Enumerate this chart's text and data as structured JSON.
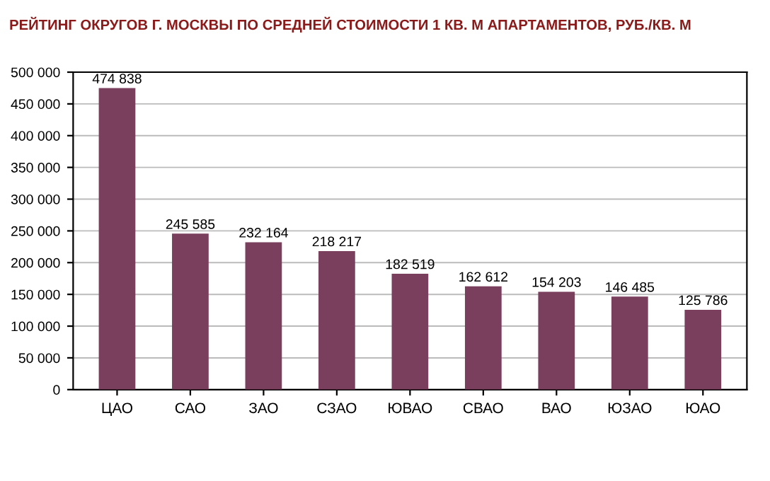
{
  "chart_data": {
    "type": "bar",
    "title": "РЕЙТИНГ ОКРУГОВ Г. МОСКВЫ ПО СРЕДНЕЙ СТОИМОСТИ 1 КВ. М АПАРТАМЕНТОВ, РУБ./КВ. М",
    "categories": [
      "ЦАО",
      "САО",
      "ЗАО",
      "СЗАО",
      "ЮВАО",
      "СВАО",
      "ВАО",
      "ЮЗАО",
      "ЮАО"
    ],
    "values": [
      474838,
      245585,
      232164,
      218217,
      182519,
      162612,
      154203,
      146485,
      125786
    ],
    "value_labels": [
      "474 838",
      "245 585",
      "232 164",
      "218 217",
      "182 519",
      "162 612",
      "154 203",
      "146 485",
      "125 786"
    ],
    "color": "#7b3f5e",
    "ylim": [
      0,
      500000
    ],
    "yticks": [
      {
        "value": 0,
        "label": "0"
      },
      {
        "value": 50000,
        "label": "50 000"
      },
      {
        "value": 100000,
        "label": "100 000"
      },
      {
        "value": 150000,
        "label": "150 000"
      },
      {
        "value": 200000,
        "label": "200 000"
      },
      {
        "value": 250000,
        "label": "250 000"
      },
      {
        "value": 300000,
        "label": "300 000"
      },
      {
        "value": 350000,
        "label": "350 000"
      },
      {
        "value": 400000,
        "label": "400 000"
      },
      {
        "value": 450000,
        "label": "450 000"
      },
      {
        "value": 500000,
        "label": "500 000"
      }
    ],
    "grid": "y"
  }
}
